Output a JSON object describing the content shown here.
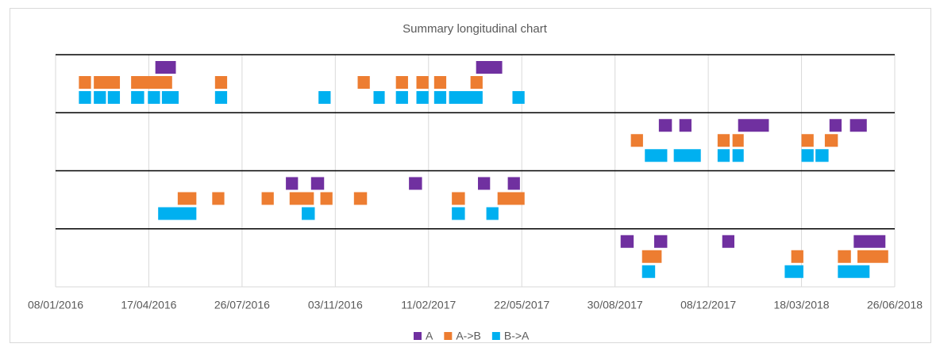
{
  "chart_data": {
    "type": "timeline",
    "title": "Summary longitudinal chart",
    "xlim": [
      "08/01/2016",
      "26/06/2018"
    ],
    "xticks": [
      "08/01/2016",
      "17/04/2016",
      "26/07/2016",
      "03/11/2016",
      "11/02/2017",
      "22/05/2017",
      "30/08/2017",
      "08/12/2017",
      "18/03/2018",
      "26/06/2018"
    ],
    "grid": true,
    "legend": "bottom",
    "series": [
      {
        "name": "A",
        "color": "#7030a0"
      },
      {
        "name": "A->B",
        "color": "#ed7d31"
      },
      {
        "name": "B->A",
        "color": "#00b0f0"
      }
    ],
    "rows": [
      {
        "series": [
          {
            "start": [
              "24/04/2016",
              "03/04/2017"
            ],
            "end": [
              "16/05/2016",
              "01/05/2017"
            ]
          },
          {
            "start": [
              "02/02/2016",
              "18/02/2016",
              "29/03/2016",
              "27/06/2016",
              "27/11/2016",
              "07/01/2017",
              "29/01/2017",
              "17/02/2017",
              "28/03/2017"
            ],
            "end": [
              "15/02/2016",
              "17/03/2016",
              "12/05/2016",
              "10/07/2016",
              "10/12/2016",
              "20/01/2017",
              "11/02/2017",
              "02/03/2017",
              "10/04/2017"
            ]
          },
          {
            "start": [
              "02/02/2016",
              "18/02/2016",
              "04/03/2016",
              "29/03/2016",
              "16/04/2016",
              "01/05/2016",
              "27/06/2016",
              "16/10/2016",
              "14/12/2016",
              "07/01/2017",
              "29/01/2017",
              "17/02/2017",
              "05/03/2017",
              "12/05/2017"
            ],
            "end": [
              "15/02/2016",
              "02/03/2016",
              "17/03/2016",
              "12/04/2016",
              "29/04/2016",
              "19/05/2016",
              "10/07/2016",
              "29/10/2016",
              "26/12/2016",
              "20/01/2017",
              "11/02/2017",
              "02/03/2017",
              "10/04/2017",
              "25/05/2017"
            ]
          }
        ]
      },
      {
        "series": [
          {
            "start": [
              "16/10/2017",
              "07/11/2017",
              "09/01/2018",
              "17/04/2018",
              "09/05/2018"
            ],
            "end": [
              "30/10/2017",
              "20/11/2017",
              "11/02/2018",
              "30/04/2018",
              "27/05/2018"
            ]
          },
          {
            "start": [
              "16/09/2017",
              "18/12/2017",
              "03/01/2018",
              "18/03/2018",
              "12/04/2018"
            ],
            "end": [
              "29/09/2017",
              "31/12/2017",
              "15/01/2018",
              "31/03/2018",
              "26/04/2018"
            ]
          },
          {
            "start": [
              "01/10/2017",
              "01/11/2017",
              "18/12/2017",
              "03/01/2018",
              "18/03/2018",
              "02/04/2018"
            ],
            "end": [
              "25/10/2017",
              "30/11/2017",
              "31/12/2017",
              "15/01/2018",
              "31/03/2018",
              "16/04/2018"
            ]
          }
        ]
      },
      {
        "series": [
          {
            "start": [
              "11/09/2016",
              "08/10/2016",
              "21/01/2017",
              "05/04/2017",
              "07/05/2017"
            ],
            "end": [
              "24/09/2016",
              "22/10/2016",
              "04/02/2017",
              "18/04/2017",
              "20/05/2017"
            ]
          },
          {
            "start": [
              "18/05/2016",
              "24/06/2016",
              "16/08/2016",
              "15/09/2016",
              "18/10/2016",
              "23/11/2016",
              "08/03/2017",
              "26/04/2017"
            ],
            "end": [
              "07/06/2016",
              "07/07/2016",
              "29/08/2016",
              "11/10/2016",
              "31/10/2016",
              "07/12/2016",
              "22/03/2017",
              "25/05/2017"
            ]
          },
          {
            "start": [
              "27/04/2016",
              "28/09/2016",
              "08/03/2017",
              "14/04/2017"
            ],
            "end": [
              "07/06/2016",
              "12/10/2016",
              "22/03/2017",
              "27/04/2017"
            ]
          }
        ]
      },
      {
        "series": [
          {
            "start": [
              "05/09/2017",
              "11/10/2017",
              "23/12/2017",
              "13/05/2018"
            ],
            "end": [
              "19/09/2017",
              "25/10/2017",
              "05/01/2018",
              "16/06/2018"
            ]
          },
          {
            "start": [
              "28/09/2017",
              "07/03/2018",
              "26/04/2018",
              "17/05/2018"
            ],
            "end": [
              "19/10/2017",
              "20/03/2018",
              "10/05/2018",
              "19/06/2018"
            ]
          },
          {
            "start": [
              "28/09/2017",
              "28/02/2018",
              "26/04/2018"
            ],
            "end": [
              "12/10/2017",
              "20/03/2018",
              "30/05/2018"
            ]
          }
        ]
      }
    ]
  }
}
